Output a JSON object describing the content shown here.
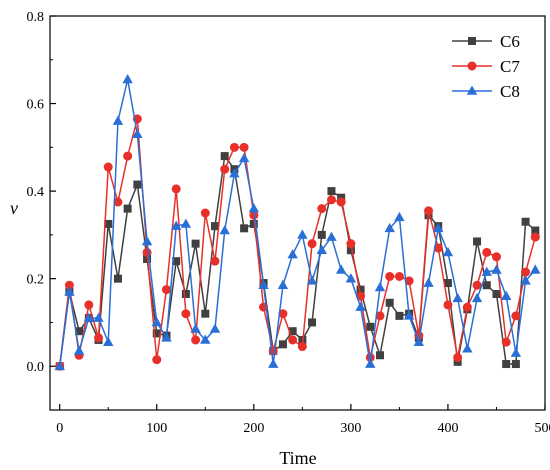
{
  "chart_data": {
    "type": "line",
    "xlabel": "Time",
    "ylabel": "v",
    "xlim": [
      -10,
      500
    ],
    "ylim": [
      -0.1,
      0.8
    ],
    "xticks": [
      0,
      100,
      200,
      300,
      400,
      500
    ],
    "yticks": [
      0.0,
      0.2,
      0.4,
      0.6,
      0.8
    ],
    "ytick_labels": [
      "0.0",
      "0.2",
      "0.4",
      "0.6",
      "0.8"
    ],
    "grid": false,
    "legend_position": "top-right",
    "x": [
      0,
      10,
      20,
      30,
      40,
      50,
      60,
      70,
      80,
      90,
      100,
      110,
      120,
      130,
      140,
      150,
      160,
      170,
      180,
      190,
      200,
      210,
      220,
      230,
      240,
      250,
      260,
      270,
      280,
      290,
      300,
      310,
      320,
      330,
      340,
      350,
      360,
      370,
      380,
      390,
      400,
      410,
      420,
      430,
      440,
      450,
      460,
      470,
      480,
      490
    ],
    "series": [
      {
        "name": "C6",
        "color": "#404040",
        "marker": "square",
        "values": [
          0.0,
          0.17,
          0.08,
          0.11,
          0.06,
          0.325,
          0.2,
          0.36,
          0.415,
          0.245,
          0.075,
          0.07,
          0.24,
          0.165,
          0.28,
          0.12,
          0.32,
          0.48,
          0.45,
          0.315,
          0.325,
          0.19,
          0.035,
          0.05,
          0.08,
          0.06,
          0.1,
          0.3,
          0.4,
          0.385,
          0.265,
          0.175,
          0.09,
          0.025,
          0.145,
          0.115,
          0.12,
          0.065,
          0.345,
          0.32,
          0.19,
          0.01,
          0.13,
          0.285,
          0.185,
          0.165,
          0.005,
          0.005,
          0.33,
          0.31
        ]
      },
      {
        "name": "C7",
        "color": "#e8302a",
        "marker": "circle",
        "values": [
          0.0,
          0.185,
          0.025,
          0.14,
          0.065,
          0.455,
          0.375,
          0.48,
          0.565,
          0.26,
          0.015,
          0.175,
          0.405,
          0.12,
          0.06,
          0.35,
          0.24,
          0.45,
          0.5,
          0.5,
          0.345,
          0.135,
          0.035,
          0.12,
          0.06,
          0.045,
          0.28,
          0.36,
          0.38,
          0.375,
          0.28,
          0.16,
          0.02,
          0.115,
          0.205,
          0.205,
          0.195,
          0.07,
          0.355,
          0.27,
          0.14,
          0.02,
          0.135,
          0.185,
          0.26,
          0.25,
          0.055,
          0.115,
          0.215,
          0.295
        ]
      },
      {
        "name": "C8",
        "color": "#2a6fd6",
        "marker": "triangle",
        "values": [
          0.0,
          0.17,
          0.035,
          0.11,
          0.11,
          0.055,
          0.56,
          0.655,
          0.53,
          0.285,
          0.1,
          0.065,
          0.32,
          0.325,
          0.085,
          0.06,
          0.085,
          0.31,
          0.44,
          0.475,
          0.36,
          0.185,
          0.005,
          0.185,
          0.255,
          0.3,
          0.195,
          0.265,
          0.295,
          0.22,
          0.2,
          0.135,
          0.005,
          0.18,
          0.315,
          0.34,
          0.115,
          0.055,
          0.19,
          0.315,
          0.26,
          0.155,
          0.04,
          0.155,
          0.215,
          0.22,
          0.16,
          0.03,
          0.195,
          0.22
        ]
      }
    ]
  }
}
